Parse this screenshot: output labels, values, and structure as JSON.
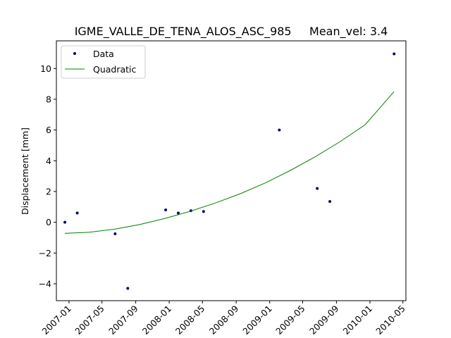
{
  "chart_data": {
    "type": "scatter",
    "title": "IGME_VALLE_DE_TENA_ALOS_ASC_985     Mean_vel: 3.4",
    "xlabel": "",
    "ylabel": "Displacement [mm]",
    "xlim": [
      "2006-11-16",
      "2010-05-12"
    ],
    "ylim": [
      -5.1,
      11.8
    ],
    "x_ticks": [
      "2007-01",
      "2007-05",
      "2007-09",
      "2008-01",
      "2008-05",
      "2008-09",
      "2009-01",
      "2009-05",
      "2009-09",
      "2010-01",
      "2010-05"
    ],
    "y_ticks": [
      -4,
      -2,
      0,
      2,
      4,
      6,
      8,
      10
    ],
    "grid": false,
    "legend_position": "top-left",
    "series": [
      {
        "name": "Data",
        "kind": "points",
        "color": "#00007f",
        "points": [
          {
            "x": "2006-12-17",
            "y": 0.0
          },
          {
            "x": "2007-01-31",
            "y": 0.6
          },
          {
            "x": "2007-06-18",
            "y": -0.75
          },
          {
            "x": "2007-08-03",
            "y": -4.3
          },
          {
            "x": "2007-12-19",
            "y": 0.8
          },
          {
            "x": "2008-02-03",
            "y": 0.6
          },
          {
            "x": "2008-03-20",
            "y": 0.75
          },
          {
            "x": "2008-05-05",
            "y": 0.7
          },
          {
            "x": "2009-02-05",
            "y": 6.0
          },
          {
            "x": "2009-06-23",
            "y": 2.2
          },
          {
            "x": "2009-08-08",
            "y": 1.35
          },
          {
            "x": "2010-03-30",
            "y": 10.95
          }
        ]
      },
      {
        "name": "Quadratic",
        "kind": "line",
        "color": "#008000",
        "points": [
          {
            "x": "2006-12-17",
            "y": -0.72
          },
          {
            "x": "2007-03-15",
            "y": -0.65
          },
          {
            "x": "2007-06-15",
            "y": -0.45
          },
          {
            "x": "2007-09-15",
            "y": -0.15
          },
          {
            "x": "2007-12-15",
            "y": 0.24
          },
          {
            "x": "2008-03-15",
            "y": 0.7
          },
          {
            "x": "2008-06-15",
            "y": 1.24
          },
          {
            "x": "2008-09-15",
            "y": 1.85
          },
          {
            "x": "2008-12-15",
            "y": 2.55
          },
          {
            "x": "2009-03-15",
            "y": 3.35
          },
          {
            "x": "2009-06-15",
            "y": 4.25
          },
          {
            "x": "2009-09-15",
            "y": 5.25
          },
          {
            "x": "2009-12-15",
            "y": 6.35
          },
          {
            "x": "2010-03-30",
            "y": 8.5
          }
        ]
      }
    ]
  }
}
